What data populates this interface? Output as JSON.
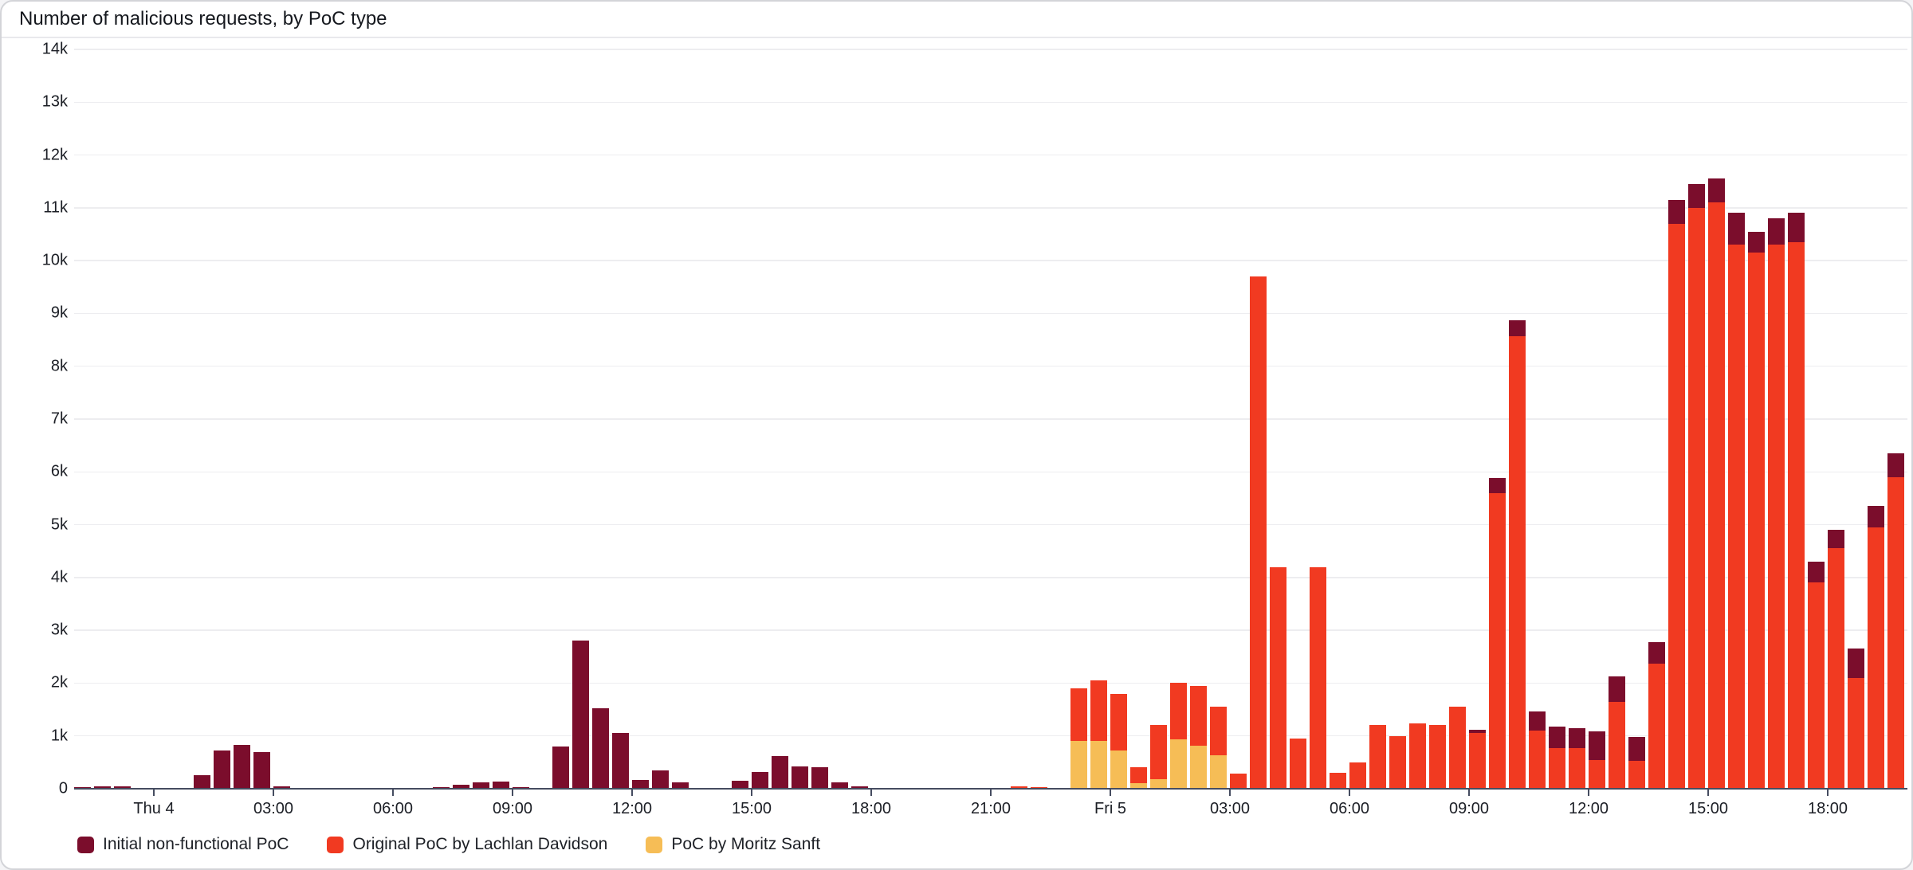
{
  "window": {
    "card_background": "#ffffff",
    "border_color": "#d3d4d8"
  },
  "chart_data": {
    "type": "bar",
    "stacked": true,
    "title": "Number of malicious requests, by PoC type",
    "xlabel": "",
    "ylabel": "",
    "ylim": [
      0,
      14000
    ],
    "grid": "horizontal",
    "legend_position": "bottom-left",
    "y_tick_labels": [
      "0",
      "1k",
      "2k",
      "3k",
      "4k",
      "5k",
      "6k",
      "7k",
      "8k",
      "9k",
      "10k",
      "11k",
      "12k",
      "13k",
      "14k"
    ],
    "bucket_interval_minutes": 30,
    "x_start_bucket": "Wed 22:00",
    "x_end_bucket": "Fri 19:30",
    "x_ticks": [
      {
        "i": 4,
        "label": "Thu 4"
      },
      {
        "i": 10,
        "label": "03:00"
      },
      {
        "i": 16,
        "label": "06:00"
      },
      {
        "i": 22,
        "label": "09:00"
      },
      {
        "i": 28,
        "label": "12:00"
      },
      {
        "i": 34,
        "label": "15:00"
      },
      {
        "i": 40,
        "label": "18:00"
      },
      {
        "i": 46,
        "label": "21:00"
      },
      {
        "i": 52,
        "label": "Fri 5"
      },
      {
        "i": 58,
        "label": "03:00"
      },
      {
        "i": 64,
        "label": "06:00"
      },
      {
        "i": 70,
        "label": "09:00"
      },
      {
        "i": 76,
        "label": "12:00"
      },
      {
        "i": 82,
        "label": "15:00"
      },
      {
        "i": 88,
        "label": "18:00"
      }
    ],
    "stack_order_bottom_to_top": [
      "PoC by Moritz Sanft",
      "Original PoC by Lachlan Davidson",
      "Initial non-functional PoC"
    ],
    "series": [
      {
        "name": "Initial non-functional PoC",
        "color": "#7b0d2c",
        "values": [
          30,
          50,
          50,
          0,
          0,
          0,
          250,
          730,
          830,
          700,
          40,
          0,
          0,
          0,
          0,
          0,
          20,
          20,
          30,
          80,
          120,
          140,
          30,
          20,
          800,
          2800,
          1520,
          1060,
          170,
          350,
          120,
          0,
          0,
          150,
          320,
          620,
          420,
          400,
          120,
          40,
          0,
          0,
          0,
          0,
          0,
          0,
          0,
          0,
          0,
          0,
          0,
          0,
          0,
          0,
          0,
          0,
          0,
          0,
          0,
          0,
          0,
          0,
          0,
          0,
          0,
          0,
          0,
          0,
          0,
          0,
          70,
          290,
          300,
          370,
          405,
          380,
          535,
          470,
          455,
          400,
          450,
          450,
          450,
          600,
          400,
          500,
          550,
          400,
          350,
          550,
          400,
          450
        ]
      },
      {
        "name": "Original PoC by Lachlan Davidson",
        "color": "#f13a21",
        "values": [
          0,
          0,
          0,
          0,
          0,
          0,
          0,
          0,
          0,
          0,
          0,
          0,
          0,
          0,
          0,
          0,
          0,
          0,
          0,
          0,
          0,
          0,
          0,
          0,
          0,
          0,
          0,
          0,
          0,
          0,
          0,
          0,
          0,
          0,
          0,
          0,
          0,
          0,
          0,
          0,
          0,
          0,
          0,
          0,
          0,
          0,
          0,
          40,
          30,
          20,
          1000,
          1150,
          1070,
          300,
          1020,
          1070,
          1130,
          910,
          280,
          9700,
          4200,
          950,
          4200,
          300,
          500,
          1200,
          1000,
          1230,
          1200,
          1560,
          1050,
          5590,
          8570,
          1100,
          775,
          770,
          545,
          1650,
          530,
          2370,
          10700,
          11000,
          11100,
          10300,
          10150,
          10300,
          10350,
          3900,
          4550,
          2100,
          4950,
          5900
        ]
      },
      {
        "name": "PoC by Moritz Sanft",
        "color": "#f6bd56",
        "values": [
          0,
          0,
          0,
          0,
          0,
          0,
          0,
          0,
          0,
          0,
          0,
          0,
          0,
          0,
          0,
          0,
          0,
          0,
          0,
          0,
          0,
          0,
          0,
          0,
          0,
          0,
          0,
          0,
          0,
          0,
          0,
          0,
          0,
          0,
          0,
          0,
          0,
          0,
          0,
          0,
          0,
          0,
          0,
          0,
          0,
          0,
          0,
          0,
          0,
          0,
          900,
          900,
          730,
          100,
          180,
          930,
          820,
          640,
          0,
          0,
          0,
          0,
          0,
          0,
          0,
          0,
          0,
          0,
          0,
          0,
          0,
          0,
          0,
          0,
          0,
          0,
          0,
          0,
          0,
          0,
          0,
          0,
          0,
          0,
          0,
          0,
          0,
          0,
          0,
          0,
          0,
          0
        ]
      }
    ]
  },
  "legend": {
    "items": [
      {
        "label": "Initial non-functional PoC",
        "color": "#7b0d2c"
      },
      {
        "label": "Original PoC by Lachlan Davidson",
        "color": "#f13a21"
      },
      {
        "label": "PoC by Moritz Sanft",
        "color": "#f6bd56"
      }
    ]
  },
  "style": {
    "gridline_color": "#ededf0",
    "axis_line_color": "#454c60",
    "text_color": "#1c1f26"
  }
}
